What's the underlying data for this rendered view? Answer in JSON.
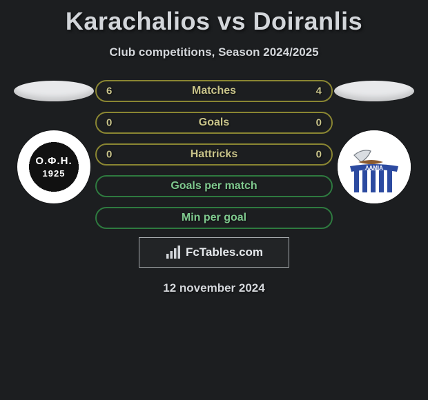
{
  "header": {
    "title": "Karachalios vs Doiranlis",
    "subtitle": "Club competitions, Season 2024/2025"
  },
  "left_crest": {
    "label": "Ο.Φ.Η.",
    "year": "1925",
    "inner_bg": "#111111",
    "outer_bg": "#ffffff",
    "text_color": "#ffffff"
  },
  "right_crest": {
    "label": "ΛΑΜΙΑ",
    "bg": "#ffffff",
    "stripe_color": "#2c4aa0",
    "banner_color": "#2c4aa0",
    "sail_color": "#d9dde2"
  },
  "bars": [
    {
      "label": "Matches",
      "left": "6",
      "right": "4",
      "border": "#8a8632",
      "text": "#c9c48a"
    },
    {
      "label": "Goals",
      "left": "0",
      "right": "0",
      "border": "#8a8632",
      "text": "#c9c48a"
    },
    {
      "label": "Hattricks",
      "left": "0",
      "right": "0",
      "border": "#8a8632",
      "text": "#c9c48a"
    },
    {
      "label": "Goals per match",
      "left": "",
      "right": "",
      "border": "#2e7a3f",
      "text": "#7fc98e"
    },
    {
      "label": "Min per goal",
      "left": "",
      "right": "",
      "border": "#2e7a3f",
      "text": "#7fc98e"
    }
  ],
  "watermark": {
    "text": "FcTables.com",
    "icon_color": "#d3d6da",
    "border_color": "#a9adb0"
  },
  "date": "12 november 2024",
  "style": {
    "background": "#1c1e20",
    "title_color": "#d3d6da",
    "head_marker_fill": "#e8e9eb"
  }
}
